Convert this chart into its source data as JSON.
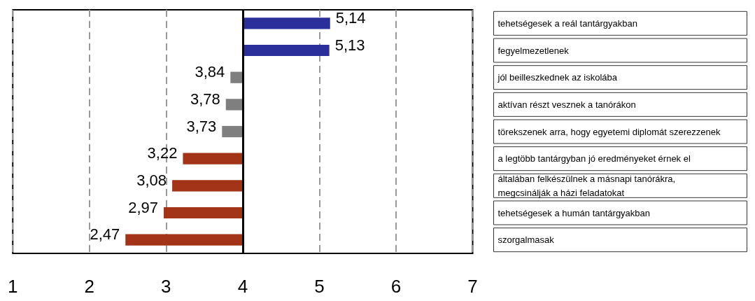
{
  "chart_data": {
    "type": "bar",
    "orientation": "horizontal",
    "categories": [
      "tehetségesek a reál tantárgyakban",
      "fegyelmezetlenek",
      "jól beilleszkednek az iskolába",
      "aktívan részt vesznek a tanórákon",
      "törekszenek arra, hogy egyetemi diplomát szerezzenek",
      "a legtöbb tantárgyban jó eredményeket érnek el",
      "általában felkészülnek a másnapi tanórákra,\nmegcsinálják a házi feladatokat",
      "tehetségesek a humán tantárgyakban",
      "szorgalmasak"
    ],
    "base": [
      4,
      4,
      4,
      4,
      4,
      4,
      4,
      4,
      4
    ],
    "values": [
      1.14,
      1.13,
      -0.16,
      -0.22,
      -0.27,
      -0.78,
      -0.92,
      -1.03,
      -1.53
    ],
    "colors": [
      "#2b2f9c",
      "#2b2f9c",
      "#7f7f7f",
      "#7f7f7f",
      "#7f7f7f",
      "#a33417",
      "#a33417",
      "#a33417",
      "#a33417"
    ],
    "value_labels": [
      "5,14",
      "5,13",
      "3,84",
      "3,78",
      "3,73",
      "3,22",
      "3,08",
      "2,97",
      "2,47"
    ],
    "ref_lines": [
      {
        "axis": "x",
        "value": 4,
        "color": "#000000"
      }
    ],
    "xlim": [
      1,
      7
    ],
    "xticks": [
      1,
      2,
      3,
      4,
      5,
      6,
      7
    ],
    "grid": "x"
  }
}
